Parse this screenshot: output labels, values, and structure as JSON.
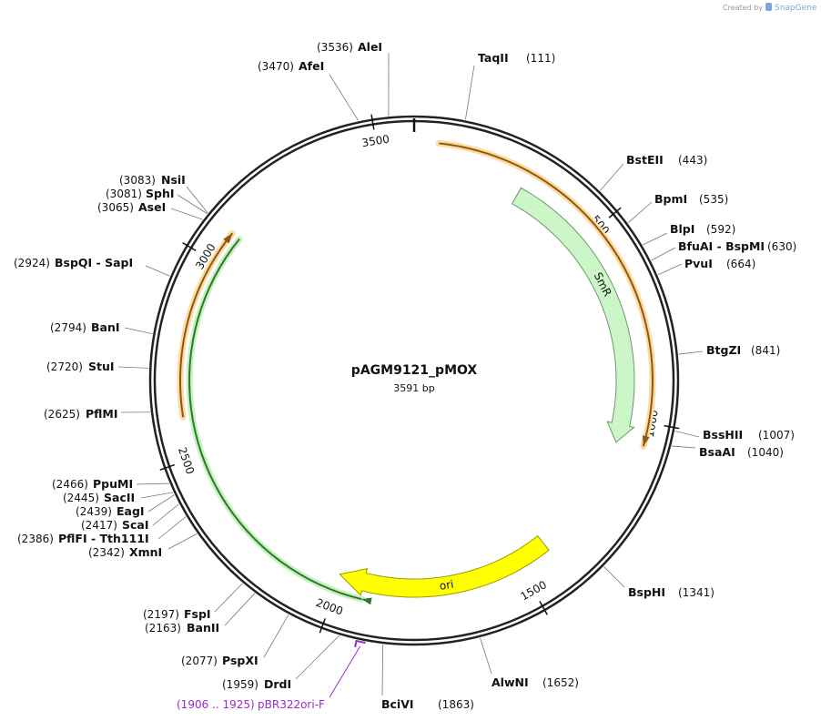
{
  "header": {
    "created_by": "Created by",
    "brand": "SnapGene"
  },
  "plasmid": {
    "name": "pAGM9121_pMOX",
    "length": "3591 bp"
  },
  "ruler": [
    500,
    1000,
    1500,
    2000,
    2500,
    3000,
    3500
  ],
  "sites": [
    {
      "name": "AleI",
      "position": "(3536)"
    },
    {
      "name": "AfeI",
      "position": "(3470)"
    },
    {
      "name": "TaqII",
      "position": "(111)"
    },
    {
      "name": "BstEII",
      "position": "(443)"
    },
    {
      "name": "BpmI",
      "position": "(535)"
    },
    {
      "name": "BlpI",
      "position": "(592)"
    },
    {
      "name": "BfuAI - BspMI",
      "position": "(630)"
    },
    {
      "name": "PvuI",
      "position": "(664)"
    },
    {
      "name": "BtgZI",
      "position": "(841)"
    },
    {
      "name": "BssHII",
      "position": "(1007)"
    },
    {
      "name": "BsaAI",
      "position": "(1040)"
    },
    {
      "name": "BspHI",
      "position": "(1341)"
    },
    {
      "name": "AlwNI",
      "position": "(1652)"
    },
    {
      "name": "BciVI",
      "position": "(1863)"
    },
    {
      "name": "NsiI",
      "position": "(3083)"
    },
    {
      "name": "SphI",
      "position": "(3081)"
    },
    {
      "name": "AseI",
      "position": "(3065)"
    },
    {
      "name": "BspQI - SapI",
      "position": "(2924)"
    },
    {
      "name": "BanI",
      "position": "(2794)"
    },
    {
      "name": "StuI",
      "position": "(2720)"
    },
    {
      "name": "PflMI",
      "position": "(2625)"
    },
    {
      "name": "PpuMI",
      "position": "(2466)"
    },
    {
      "name": "SacII",
      "position": "(2445)"
    },
    {
      "name": "EagI",
      "position": "(2439)"
    },
    {
      "name": "ScaI",
      "position": "(2417)"
    },
    {
      "name": "PflFI - Tth111I",
      "position": "(2386)"
    },
    {
      "name": "XmnI",
      "position": "(2342)"
    },
    {
      "name": "FspI",
      "position": "(2197)"
    },
    {
      "name": "BanII",
      "position": "(2163)"
    },
    {
      "name": "PspXI",
      "position": "(2077)"
    },
    {
      "name": "DrdI",
      "position": "(1959)"
    }
  ],
  "features": [
    {
      "label": "SmR"
    },
    {
      "label": "ori"
    }
  ],
  "primers": [
    {
      "name": "pBR322ori-F",
      "range": "(1906 .. 1925)"
    }
  ]
}
